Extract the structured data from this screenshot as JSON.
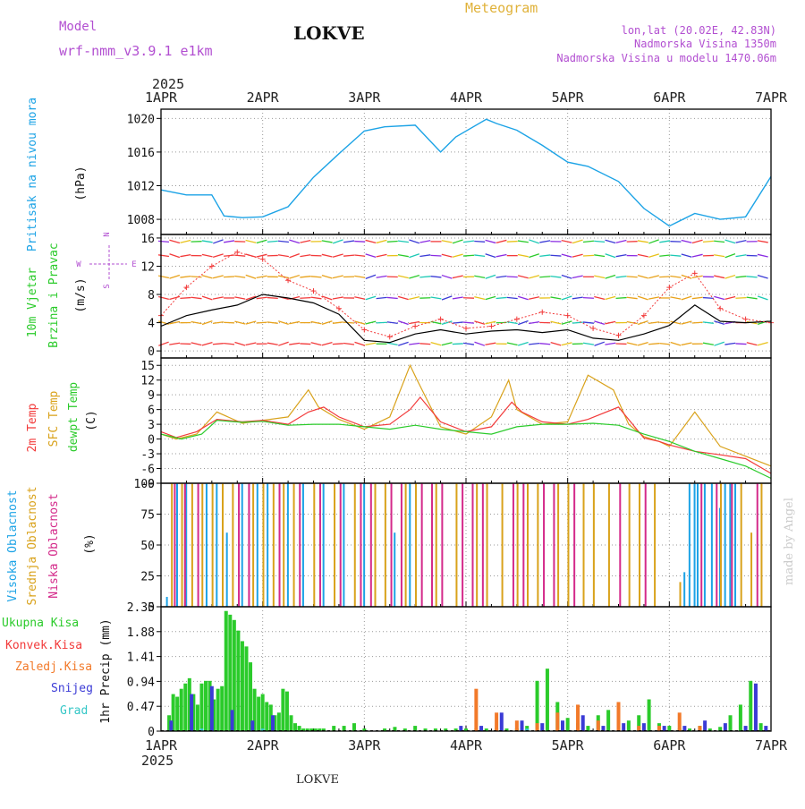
{
  "header": {
    "model_label": "Model",
    "model_name": "wrf-nmm_v3.9.1  e1km",
    "station": "LOKVE",
    "title": "Meteogram",
    "coords": "lon,lat (20.02E, 42.83N)",
    "elevation": "Nadmorska Visina 1350m",
    "model_elevation": "Nadmorska Visina u modelu 1470.06m",
    "year_top": "2025",
    "year_bottom": "2025",
    "footer_station": "LOKVE",
    "watermark": "made by Angel"
  },
  "colors": {
    "pressure": "#1ca3e6",
    "wind_black": "#000000",
    "wind_cross": "#f23a3a",
    "temp2m": "#f23a3a",
    "sfc": "#d9a21b",
    "dewpt": "#2bcb2b",
    "cloud_high": "#1ca3e6",
    "cloud_mid": "#d9a21b",
    "cloud_low": "#d42a8a",
    "precip_total": "#2bcb2b",
    "precip_conv": "#f23a3a",
    "precip_frozen": "#f27a2a",
    "snow": "#3b3bd6",
    "hail": "#33c6c6",
    "model_text": "#b24fd1",
    "title_text": "#e0b23a"
  },
  "chart_data": [
    {
      "type": "line",
      "panel": "pressure",
      "ylabel": "(hPa)",
      "side_labels": [
        "Pritisak na nivou mora"
      ],
      "x_ticks": [
        "1APR",
        "2APR",
        "3APR",
        "4APR",
        "5APR",
        "6APR",
        "7APR"
      ],
      "yticks": [
        1008,
        1012,
        1016,
        1020
      ],
      "ylim": [
        1006.2,
        1021.1
      ],
      "xlim": [
        0,
        6
      ],
      "series": [
        {
          "x": [
            0,
            0.25,
            0.5,
            0.62,
            0.8,
            1.0,
            1.25,
            1.5,
            1.75,
            2.0,
            2.2,
            2.5,
            2.75,
            2.9,
            3.2,
            3.3,
            3.5,
            3.75,
            4.0,
            4.2,
            4.5,
            4.75,
            5.0,
            5.25,
            5.5,
            5.75,
            6.0
          ],
          "values": [
            1011.5,
            1010.9,
            1010.9,
            1008.4,
            1008.2,
            1008.3,
            1009.5,
            1013.0,
            1015.8,
            1018.5,
            1019.0,
            1019.2,
            1016.0,
            1017.8,
            1019.9,
            1019.4,
            1018.6,
            1016.8,
            1014.8,
            1014.3,
            1012.5,
            1009.3,
            1007.2,
            1008.7,
            1008.0,
            1008.3,
            1013.1
          ]
        }
      ]
    },
    {
      "type": "line",
      "panel": "wind",
      "ylabel": "(m/s)",
      "side_labels": [
        "10m Vjetar",
        "Brzina i Pravac"
      ],
      "compass": [
        "N",
        "E",
        "S",
        "W"
      ],
      "yticks": [
        0,
        4,
        8,
        12,
        16
      ],
      "ylim": [
        -1,
        16.5
      ],
      "xlim": [
        0,
        6
      ],
      "series": [
        {
          "name": "brzina",
          "x": [
            0,
            0.25,
            0.5,
            0.75,
            1.0,
            1.25,
            1.5,
            1.75,
            2.0,
            2.25,
            2.5,
            2.75,
            3.0,
            3.25,
            3.5,
            3.75,
            4.0,
            4.25,
            4.5,
            4.75,
            5.0,
            5.25,
            5.5,
            5.75,
            6.0
          ],
          "values": [
            3.5,
            5.0,
            5.8,
            6.5,
            8.0,
            7.5,
            6.8,
            5.2,
            1.5,
            1.2,
            2.4,
            3.0,
            2.4,
            2.8,
            3.0,
            2.6,
            3.0,
            1.8,
            1.5,
            2.4,
            3.6,
            6.5,
            4.2,
            4.0,
            4.2
          ]
        },
        {
          "name": "udari",
          "x": [
            0,
            0.25,
            0.5,
            0.75,
            1.0,
            1.25,
            1.5,
            1.75,
            2.0,
            2.25,
            2.5,
            2.75,
            3.0,
            3.25,
            3.5,
            3.75,
            4.0,
            4.25,
            4.5,
            4.75,
            5.0,
            5.25,
            5.5,
            5.75,
            6.0
          ],
          "values": [
            5.0,
            9.0,
            12.0,
            14.0,
            13.0,
            10.0,
            8.5,
            6.0,
            3.0,
            2.0,
            3.5,
            4.5,
            3.2,
            3.5,
            4.5,
            5.5,
            5.0,
            3.2,
            2.2,
            5.0,
            9.0,
            11.0,
            6.0,
            4.5,
            4.0
          ]
        }
      ]
    },
    {
      "type": "line",
      "panel": "temperature",
      "ylabel": "(C)",
      "side_labels": [
        "2m Temp",
        "SFC Temp",
        "dewpt Temp"
      ],
      "yticks": [
        -9,
        -6,
        -3,
        0,
        3,
        6,
        9,
        12,
        15
      ],
      "ylim": [
        -9,
        16.5
      ],
      "xlim": [
        0,
        6
      ],
      "series": [
        {
          "name": "2m Temp",
          "x": [
            0,
            0.15,
            0.35,
            0.55,
            0.8,
            1.0,
            1.25,
            1.45,
            1.6,
            1.75,
            2.0,
            2.25,
            2.45,
            2.55,
            2.75,
            3.0,
            3.25,
            3.45,
            3.55,
            3.75,
            4.0,
            4.2,
            4.5,
            4.75,
            4.9,
            5.0,
            5.25,
            5.5,
            5.75,
            6.0
          ],
          "values": [
            1.5,
            0.3,
            1.5,
            4.0,
            3.5,
            3.8,
            3.0,
            5.5,
            6.5,
            4.5,
            2.5,
            3.0,
            6.0,
            8.5,
            3.5,
            1.5,
            2.5,
            7.5,
            5.5,
            3.5,
            3.0,
            4.0,
            6.5,
            0.2,
            -0.5,
            -1.2,
            -2.5,
            -3.2,
            -4.0,
            -7.0
          ]
        },
        {
          "name": "SFC Temp",
          "x": [
            0,
            0.15,
            0.35,
            0.55,
            0.8,
            1.0,
            1.25,
            1.45,
            1.55,
            1.75,
            2.0,
            2.25,
            2.45,
            2.52,
            2.75,
            3.0,
            3.25,
            3.42,
            3.5,
            3.75,
            4.0,
            4.2,
            4.45,
            4.6,
            4.75,
            4.9,
            5.0,
            5.25,
            5.5,
            5.75,
            6.0
          ],
          "values": [
            1.0,
            0.0,
            1.0,
            5.5,
            3.2,
            3.8,
            4.5,
            10.0,
            6.5,
            4.0,
            2.0,
            4.5,
            15.0,
            12.0,
            2.5,
            1.0,
            4.5,
            12.0,
            6.0,
            3.0,
            3.5,
            13.0,
            10.0,
            3.0,
            0.5,
            -0.5,
            -1.5,
            5.5,
            -1.5,
            -3.5,
            -5.5
          ]
        },
        {
          "name": "dewpt Temp",
          "x": [
            0,
            0.2,
            0.4,
            0.55,
            0.8,
            1.0,
            1.25,
            1.5,
            1.75,
            2.0,
            2.25,
            2.5,
            2.75,
            3.0,
            3.25,
            3.5,
            3.75,
            4.0,
            4.25,
            4.5,
            4.75,
            5.0,
            5.25,
            5.5,
            5.75,
            6.0
          ],
          "values": [
            1.0,
            0.0,
            1.0,
            3.8,
            3.4,
            3.6,
            2.8,
            3.0,
            3.0,
            2.5,
            2.0,
            2.8,
            2.0,
            1.5,
            1.0,
            2.5,
            3.0,
            3.0,
            3.2,
            2.8,
            1.0,
            -0.5,
            -2.5,
            -4.0,
            -5.5,
            -8.0
          ]
        }
      ]
    },
    {
      "type": "bar",
      "panel": "clouds",
      "ylabel": "(%)",
      "side_labels": [
        "Visoka Oblacnost",
        "Srednja Oblacnost",
        "Niska Oblacnost"
      ],
      "yticks": [
        0,
        25,
        50,
        75,
        100
      ],
      "ylim": [
        0,
        100
      ],
      "xlim": [
        0,
        6
      ],
      "series": [
        {
          "name": "Visoka Oblacnost",
          "x": [
            0.06,
            0.16,
            0.25,
            0.45,
            0.55,
            0.65,
            0.8,
            0.95,
            1.05,
            1.25,
            1.4,
            1.6,
            1.8,
            2.0,
            2.3,
            2.45,
            5.15,
            5.2,
            5.25,
            5.28,
            5.35,
            5.42,
            5.5,
            5.55,
            5.6,
            5.65
          ],
          "values": [
            8,
            100,
            100,
            100,
            100,
            60,
            100,
            100,
            100,
            100,
            100,
            100,
            100,
            100,
            60,
            100,
            28,
            100,
            100,
            100,
            100,
            100,
            80,
            100,
            100,
            100
          ]
        },
        {
          "name": "Srednja Oblacnost",
          "x": [
            0.1,
            0.2,
            0.3,
            0.4,
            0.5,
            0.6,
            0.7,
            0.9,
            1.0,
            1.1,
            1.2,
            1.3,
            1.5,
            1.7,
            1.9,
            2.1,
            2.2,
            2.4,
            2.5,
            2.7,
            2.9,
            3.1,
            3.2,
            3.35,
            3.5,
            3.6,
            3.7,
            3.9,
            4.0,
            4.15,
            4.25,
            4.4,
            4.6,
            4.7,
            4.85,
            5.1,
            5.5,
            5.7,
            5.8,
            5.9
          ],
          "values": [
            100,
            100,
            100,
            100,
            100,
            100,
            100,
            100,
            100,
            100,
            100,
            100,
            100,
            100,
            100,
            100,
            100,
            100,
            100,
            100,
            100,
            100,
            100,
            100,
            100,
            100,
            100,
            100,
            100,
            100,
            100,
            100,
            100,
            100,
            100,
            20,
            100,
            100,
            60,
            100
          ]
        },
        {
          "name": "Niska Oblacnost",
          "x": [
            0.12,
            0.22,
            0.35,
            0.75,
            0.85,
            1.15,
            1.35,
            1.55,
            1.75,
            1.95,
            2.05,
            2.25,
            2.35,
            2.55,
            2.65,
            2.75,
            2.95,
            3.05,
            3.15,
            3.45,
            3.55,
            3.75,
            3.85,
            4.05,
            4.5,
            4.75,
            5.3,
            5.45,
            5.6,
            5.85
          ],
          "values": [
            100,
            100,
            100,
            100,
            100,
            100,
            100,
            100,
            100,
            100,
            100,
            100,
            100,
            100,
            100,
            100,
            100,
            100,
            100,
            100,
            100,
            100,
            100,
            100,
            100,
            100,
            100,
            100,
            100,
            100
          ]
        }
      ]
    },
    {
      "type": "bar",
      "panel": "precipitation",
      "ylabel": "1hr Precip (mm)",
      "side_labels": [
        "Ukupna Kisa",
        "Konvek.Kisa",
        "Zaledj.Kisa",
        "Snijeg",
        "Grad"
      ],
      "x_ticks": [
        "1APR",
        "2APR",
        "3APR",
        "4APR",
        "5APR",
        "6APR",
        "7APR"
      ],
      "yticks": [
        0,
        0.47,
        0.94,
        1.41,
        1.88,
        2.35
      ],
      "ylim": [
        0,
        2.35
      ],
      "xlim": [
        0,
        6
      ],
      "series": [
        {
          "name": "Ukupna Kisa",
          "x": [
            0.08,
            0.12,
            0.16,
            0.2,
            0.24,
            0.28,
            0.32,
            0.36,
            0.4,
            0.44,
            0.48,
            0.52,
            0.56,
            0.6,
            0.64,
            0.68,
            0.72,
            0.76,
            0.8,
            0.84,
            0.88,
            0.92,
            0.96,
            1.0,
            1.04,
            1.08,
            1.12,
            1.16,
            1.2,
            1.24,
            1.28,
            1.32,
            1.36,
            1.4,
            1.44,
            1.48,
            1.52,
            1.56,
            1.6,
            1.7,
            1.8,
            1.9,
            2.0,
            2.2,
            2.3,
            2.4,
            2.5,
            2.6,
            2.7,
            2.8,
            2.9,
            3.0,
            3.1,
            3.2,
            3.3,
            3.4,
            3.5,
            3.6,
            3.7,
            3.8,
            3.9,
            4.0,
            4.1,
            4.2,
            4.3,
            4.4,
            4.5,
            4.6,
            4.7,
            4.8,
            4.9,
            5.0,
            5.1,
            5.2,
            5.3,
            5.4,
            5.5,
            5.6,
            5.7,
            5.8,
            5.9
          ],
          "values": [
            0.3,
            0.7,
            0.65,
            0.8,
            0.9,
            1.0,
            0.7,
            0.5,
            0.9,
            0.95,
            0.95,
            0.6,
            0.8,
            0.85,
            2.27,
            2.2,
            2.1,
            1.9,
            1.7,
            1.6,
            1.3,
            0.8,
            0.65,
            0.7,
            0.55,
            0.5,
            0.3,
            0.35,
            0.8,
            0.75,
            0.3,
            0.15,
            0.1,
            0.05,
            0.05,
            0.05,
            0.05,
            0.05,
            0.05,
            0.1,
            0.1,
            0.15,
            0.05,
            0.05,
            0.08,
            0.05,
            0.1,
            0.05,
            0.05,
            0.05,
            0.05,
            0.05,
            0.05,
            0.05,
            0.05,
            0.05,
            0.05,
            0.1,
            0.95,
            1.18,
            0.55,
            0.25,
            0.15,
            0.1,
            0.3,
            0.4,
            0.25,
            0.2,
            0.3,
            0.6,
            0.15,
            0.1,
            0.05,
            0.05,
            0.1,
            0.05,
            0.08,
            0.3,
            0.5,
            0.95,
            0.15
          ]
        },
        {
          "name": "Snijeg",
          "x": [
            0.1,
            0.3,
            0.5,
            0.7,
            0.9,
            1.1,
            2.95,
            3.15,
            3.35,
            3.55,
            3.75,
            3.95,
            4.15,
            4.35,
            4.55,
            4.75,
            4.95,
            5.15,
            5.35,
            5.55,
            5.75,
            5.85,
            5.95
          ],
          "values": [
            0.2,
            0.7,
            0.85,
            0.4,
            0.2,
            0.3,
            0.1,
            0.1,
            0.35,
            0.2,
            0.15,
            0.2,
            0.3,
            0.1,
            0.15,
            0.15,
            0.1,
            0.1,
            0.2,
            0.15,
            0.1,
            0.9,
            0.1
          ]
        },
        {
          "name": "Zaledj.Kisa",
          "x": [
            3.1,
            3.3,
            3.5,
            3.7,
            3.9,
            4.1,
            4.3,
            4.5,
            4.7,
            4.9,
            5.1,
            5.3
          ],
          "values": [
            0.8,
            0.35,
            0.2,
            0.15,
            0.35,
            0.5,
            0.2,
            0.55,
            0.1,
            0.1,
            0.35,
            0.1
          ]
        },
        {
          "name": "Grad",
          "x": [
            0.4,
            1.0,
            3.6
          ],
          "values": [
            0.05,
            0.05,
            0.05
          ]
        }
      ]
    }
  ]
}
